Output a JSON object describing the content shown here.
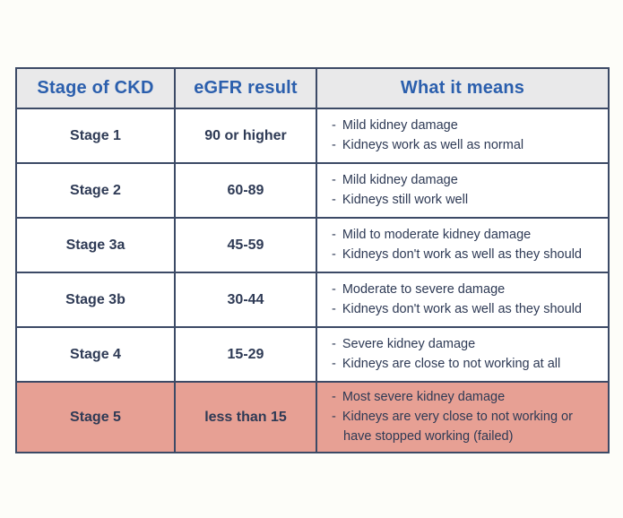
{
  "page": {
    "background": "#fdfdf9"
  },
  "colors": {
    "border": "#3c4a66",
    "header_bg": "#e9e9ea",
    "header_text": "#2b5fad",
    "body_text": "#2e3a55",
    "highlight_bg": "#e7a094",
    "row_bg": "#ffffff"
  },
  "table": {
    "bullet": "-",
    "headers": [
      "Stage of CKD",
      "eGFR result",
      "What it means"
    ],
    "rows": [
      {
        "stage": "Stage 1",
        "egfr": "90 or higher",
        "meaning": [
          "Mild kidney damage",
          "Kidneys work as well as normal"
        ],
        "highlight": false
      },
      {
        "stage": "Stage 2",
        "egfr": "60-89",
        "meaning": [
          "Mild kidney damage",
          "Kidneys still work well"
        ],
        "highlight": false
      },
      {
        "stage": "Stage 3a",
        "egfr": "45-59",
        "meaning": [
          "Mild to moderate kidney damage",
          "Kidneys don't work as well as they should"
        ],
        "highlight": false
      },
      {
        "stage": "Stage 3b",
        "egfr": "30-44",
        "meaning": [
          "Moderate to severe damage",
          "Kidneys don't work as well as they should"
        ],
        "highlight": false
      },
      {
        "stage": "Stage 4",
        "egfr": "15-29",
        "meaning": [
          "Severe kidney damage",
          "Kidneys are close to not working at all"
        ],
        "highlight": false
      },
      {
        "stage": "Stage 5",
        "egfr": "less than 15",
        "meaning": [
          "Most severe kidney damage",
          "Kidneys are very close to not working or have stopped working (failed)"
        ],
        "highlight": true
      }
    ]
  }
}
